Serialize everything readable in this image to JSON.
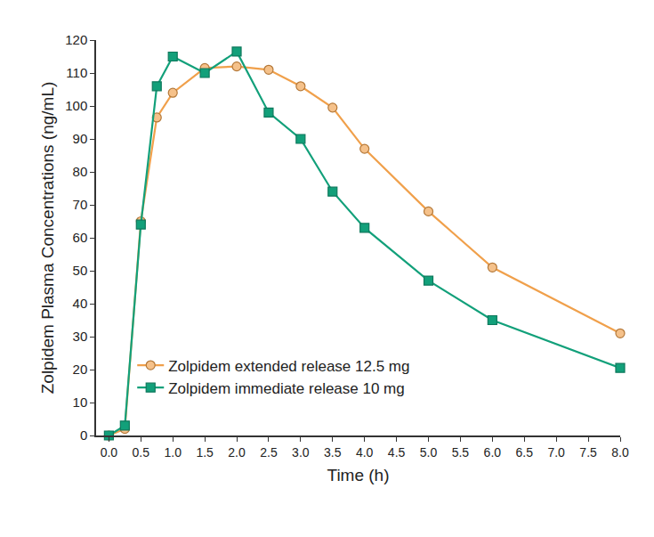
{
  "chart_data": {
    "type": "line",
    "x_label": "Time (h)",
    "y_label": "Zolpidem Plasma Concentrations (ng/mL)",
    "x": [
      0,
      0.25,
      0.5,
      0.75,
      1.0,
      1.5,
      2.0,
      2.5,
      3.0,
      3.5,
      4.0,
      5.0,
      6.0,
      8.0
    ],
    "series": [
      {
        "name": "Zolpidem extended release 12.5 mg",
        "color": "#f0a04b",
        "marker": "circle",
        "line_style": "solid",
        "values": [
          0,
          2,
          65,
          96.5,
          104,
          111.5,
          112,
          111,
          106,
          99.5,
          87,
          68,
          51,
          31
        ]
      },
      {
        "name": "Zolpidem immediate release 10 mg",
        "color": "#12a07a",
        "marker": "square",
        "line_style": "solid",
        "values": [
          0,
          3,
          64,
          106,
          115,
          110,
          116.5,
          98,
          90,
          74,
          63,
          47,
          35,
          20.5
        ]
      }
    ],
    "xlim": [
      -0.2,
      8.0
    ],
    "xticks": [
      {
        "value": 0,
        "label": "0.0"
      },
      0.5,
      {
        "value": 1,
        "label": "1.0"
      },
      1.5,
      {
        "value": 2,
        "label": "2.0"
      },
      2.5,
      {
        "value": 3,
        "label": "3.0"
      },
      3.5,
      {
        "value": 4,
        "label": "4.0"
      },
      4.5,
      {
        "value": 5,
        "label": "5.0"
      },
      5.5,
      {
        "value": 6,
        "label": "6.0"
      },
      6.5,
      {
        "value": 7,
        "label": "7.0"
      },
      7.5,
      {
        "value": 8,
        "label": "8.0"
      }
    ],
    "ylim": [
      0,
      120
    ],
    "yticks": [
      0,
      10,
      20,
      30,
      40,
      50,
      60,
      70,
      80,
      90,
      100,
      110,
      120
    ],
    "grid": false,
    "legend": "lower left"
  }
}
